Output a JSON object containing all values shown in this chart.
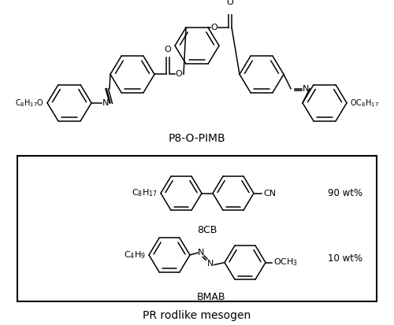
{
  "title": "P8-O-PIMB",
  "box_label": "PR rodlike mesogen",
  "background_color": "#ffffff",
  "line_color": "#000000",
  "compound1_label": "8CB",
  "compound1_wt": "90 wt%",
  "compound2_label": "BMAB",
  "compound2_wt": "10 wt%",
  "p8_left_chain": "C$_8$H$_{17}$O",
  "p8_right_chain": "OC$_8$H$_{17}$",
  "fig_width": 5.0,
  "fig_height": 4.13,
  "dpi": 100
}
